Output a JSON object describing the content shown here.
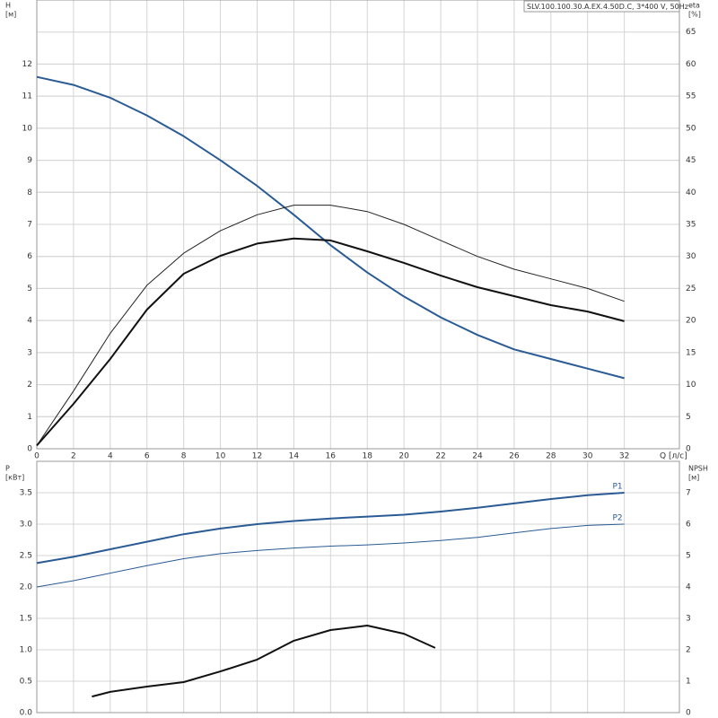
{
  "chart_data": [
    {
      "type": "line",
      "title": "SLV.100.100.30.A.EX.4.50D.C, 3*400 V, 50Hz",
      "ylabel": [
        "H",
        "[м]"
      ],
      "y2label": [
        "eta",
        "[%]"
      ],
      "xlabel": "Q [л/с]",
      "xlim": [
        0,
        35
      ],
      "xticks": [
        0,
        2,
        4,
        6,
        8,
        10,
        12,
        14,
        16,
        18,
        20,
        22,
        24,
        26,
        28,
        30,
        32
      ],
      "ylim": [
        0,
        14
      ],
      "yticks": [
        0,
        1,
        2,
        3,
        4,
        5,
        6,
        7,
        8,
        9,
        10,
        11,
        12
      ],
      "y2lim": [
        0,
        70
      ],
      "y2ticks": [
        0,
        5,
        10,
        15,
        20,
        25,
        30,
        35,
        40,
        45,
        50,
        55,
        60,
        65
      ],
      "grid": true,
      "x": [
        0,
        2,
        4,
        6,
        8,
        10,
        12,
        14,
        16,
        18,
        20,
        22,
        24,
        26,
        28,
        30,
        32
      ],
      "series": [
        {
          "color": "#2a5b94",
          "width": 2,
          "values": [
            11.6,
            11.35,
            10.95,
            10.4,
            9.75,
            9.0,
            8.2,
            7.3,
            6.35,
            5.5,
            4.75,
            4.1,
            3.55,
            3.1,
            2.8,
            2.5,
            2.2
          ]
        },
        {
          "color": "#222222",
          "width": 1,
          "axis": "y2",
          "values": [
            0.5,
            9,
            18,
            25.5,
            30.5,
            34,
            36.5,
            38,
            38,
            37,
            35,
            32.5,
            30,
            28,
            26.5,
            25,
            23
          ]
        },
        {
          "color": "#111111",
          "width": 2,
          "axis": "y2",
          "values": [
            0.5,
            7,
            14,
            21.7,
            27.3,
            30.1,
            32,
            32.8,
            32.5,
            30.8,
            29,
            27,
            25.2,
            23.8,
            22.4,
            21.4,
            19.9
          ]
        }
      ]
    },
    {
      "type": "line",
      "ylabel": [
        "P",
        "[кВт]"
      ],
      "y2label": [
        "NPSH",
        "[м]"
      ],
      "xlim": [
        0,
        35
      ],
      "ylim": [
        0,
        4
      ],
      "yticks": [
        {
          "value": 0,
          "label": "0.0"
        },
        {
          "value": 0.5,
          "label": "0.5"
        },
        {
          "value": 1,
          "label": "1.0"
        },
        {
          "value": 1.5,
          "label": "1.5"
        },
        {
          "value": 2,
          "label": "2.0"
        },
        {
          "value": 2.5,
          "label": "2.5"
        },
        {
          "value": 3,
          "label": "3.0"
        },
        {
          "value": 3.5,
          "label": "3.5"
        }
      ],
      "y2lim": [
        0,
        8
      ],
      "y2ticks": [
        0,
        1,
        2,
        3,
        4,
        5,
        6,
        7
      ],
      "grid": true,
      "series": [
        {
          "name": "P1",
          "color": "#2a5b94",
          "width": 2,
          "x": [
            0,
            2,
            4,
            6,
            8,
            10,
            12,
            14,
            16,
            18,
            20,
            22,
            24,
            26,
            28,
            30,
            32
          ],
          "values": [
            2.38,
            2.48,
            2.6,
            2.72,
            2.84,
            2.93,
            3.0,
            3.05,
            3.09,
            3.12,
            3.15,
            3.2,
            3.26,
            3.33,
            3.4,
            3.46,
            3.5
          ]
        },
        {
          "name": "P2",
          "color": "#2a5b94",
          "width": 1,
          "x": [
            0,
            2,
            4,
            6,
            8,
            10,
            12,
            14,
            16,
            18,
            20,
            22,
            24,
            26,
            28,
            30,
            32
          ],
          "values": [
            2.0,
            2.1,
            2.22,
            2.34,
            2.45,
            2.53,
            2.58,
            2.62,
            2.65,
            2.67,
            2.7,
            2.74,
            2.79,
            2.86,
            2.93,
            2.98,
            3.0
          ]
        },
        {
          "color": "#111111",
          "width": 2,
          "axis": "y2",
          "x": [
            3,
            4,
            6,
            8,
            10,
            12,
            14,
            16,
            18,
            20,
            21.7
          ],
          "values": [
            0.51,
            0.66,
            0.83,
            0.97,
            1.31,
            1.69,
            2.29,
            2.63,
            2.77,
            2.51,
            2.06
          ]
        }
      ]
    }
  ]
}
